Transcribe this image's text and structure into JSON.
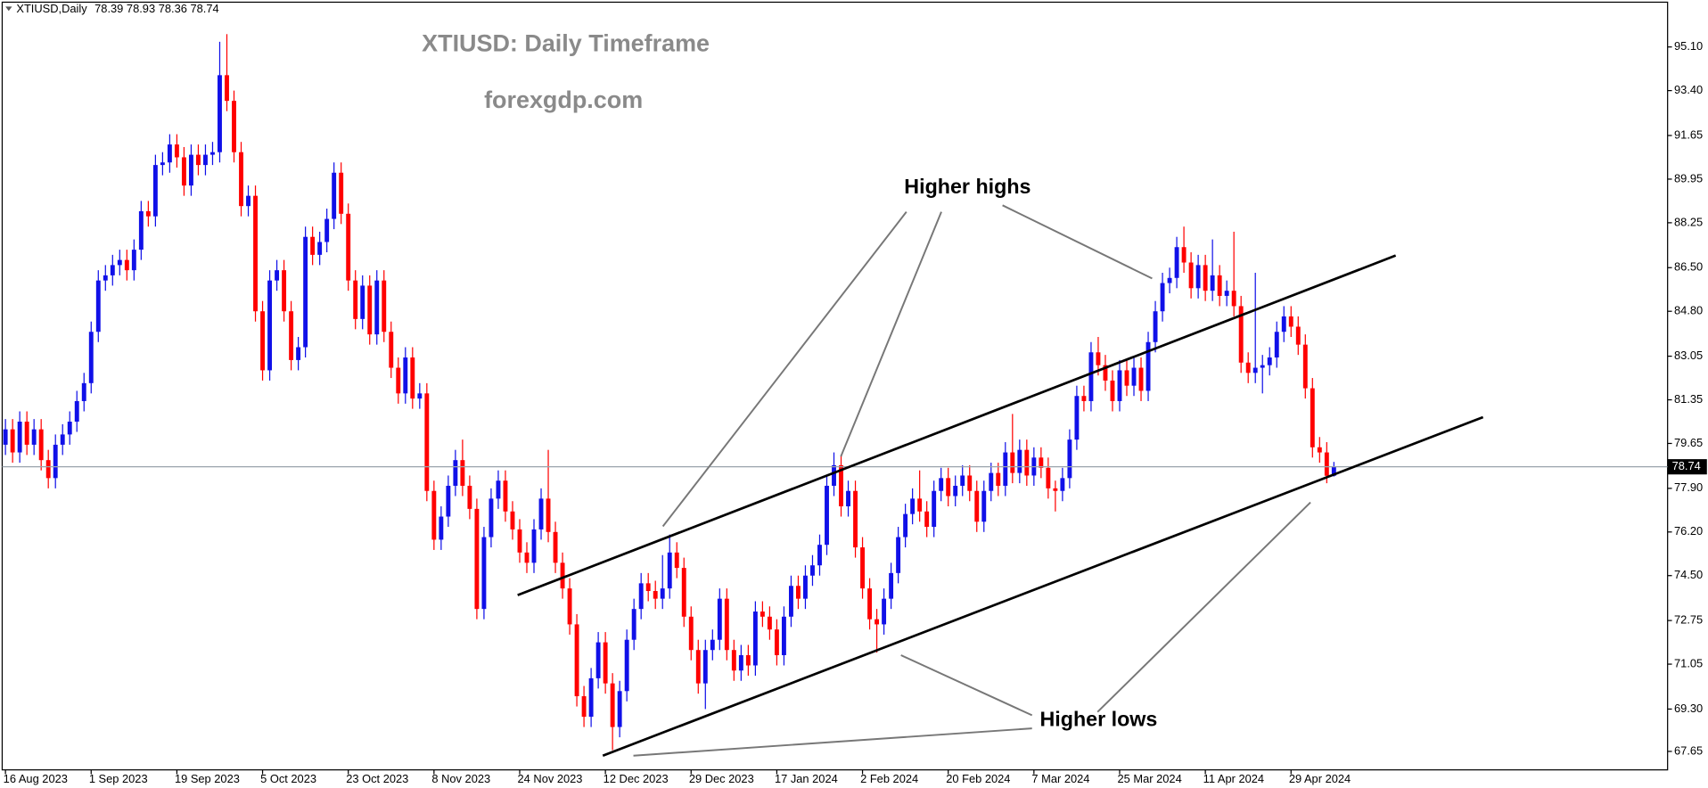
{
  "chart_data": {
    "type": "candlestick",
    "symbol": "XTIUSD,Daily",
    "title": "XTIUSD: Daily Timeframe",
    "subtitle": "forexgdp.com",
    "annotations": [
      "Higher highs",
      "Higher lows"
    ],
    "up_color": "#1010e8",
    "down_color": "#ff0000",
    "grid": false,
    "ylim": [
      66.93,
      96.93
    ],
    "yticks": [
      67.65,
      {
        "value": 69.3,
        "label": "69.30"
      },
      71.05,
      72.75,
      {
        "value": 74.5,
        "label": "74.50"
      },
      {
        "value": 76.2,
        "label": "76.20"
      },
      {
        "value": 77.9,
        "label": "77.90"
      },
      79.65,
      81.35,
      83.05,
      {
        "value": 84.8,
        "label": "84.80"
      },
      {
        "value": 86.5,
        "label": "86.50"
      },
      88.25,
      89.95,
      91.65,
      {
        "value": 93.4,
        "label": "93.40"
      },
      {
        "value": 95.1,
        "label": "95.10"
      }
    ],
    "categories": [
      "16 Aug 2023",
      null,
      null,
      null,
      null,
      null,
      null,
      null,
      null,
      null,
      null,
      null,
      "1 Sep 2023",
      null,
      null,
      null,
      null,
      null,
      null,
      null,
      null,
      null,
      null,
      null,
      "19 Sep 2023",
      null,
      null,
      null,
      null,
      null,
      null,
      null,
      null,
      null,
      null,
      null,
      "5 Oct 2023",
      null,
      null,
      null,
      null,
      null,
      null,
      null,
      null,
      null,
      null,
      null,
      "23 Oct 2023",
      null,
      null,
      null,
      null,
      null,
      null,
      null,
      null,
      null,
      null,
      null,
      "8 Nov 2023",
      null,
      null,
      null,
      null,
      null,
      null,
      null,
      null,
      null,
      null,
      null,
      "24 Nov 2023",
      null,
      null,
      null,
      null,
      null,
      null,
      null,
      null,
      null,
      null,
      null,
      "12 Dec 2023",
      null,
      null,
      null,
      null,
      null,
      null,
      null,
      null,
      null,
      null,
      null,
      "29 Dec 2023",
      null,
      null,
      null,
      null,
      null,
      null,
      null,
      null,
      null,
      null,
      null,
      "17 Jan 2024",
      null,
      null,
      null,
      null,
      null,
      null,
      null,
      null,
      null,
      null,
      null,
      "2 Feb 2024",
      null,
      null,
      null,
      null,
      null,
      null,
      null,
      null,
      null,
      null,
      null,
      "20 Feb 2024",
      null,
      null,
      null,
      null,
      null,
      null,
      null,
      null,
      null,
      null,
      null,
      "7 Mar 2024",
      null,
      null,
      null,
      null,
      null,
      null,
      null,
      null,
      null,
      null,
      null,
      "25 Mar 2024",
      null,
      null,
      null,
      null,
      null,
      null,
      null,
      null,
      null,
      null,
      null,
      "11 Apr 2024",
      null,
      null,
      null,
      null,
      null,
      null,
      null,
      null,
      null,
      null,
      null,
      "29 Apr 2024",
      null,
      null,
      null,
      null,
      null,
      null
    ],
    "candles": [
      [
        79.6,
        80.6,
        79.2,
        80.2
      ],
      [
        80.2,
        80.6,
        78.9,
        79.3
      ],
      [
        79.3,
        80.9,
        78.9,
        80.5
      ],
      [
        80.5,
        80.9,
        79.2,
        79.6
      ],
      [
        79.6,
        80.6,
        79.2,
        80.2
      ],
      [
        80.2,
        80.6,
        78.6,
        79.0
      ],
      [
        79.0,
        79.4,
        77.9,
        78.3
      ],
      [
        78.3,
        80.0,
        77.9,
        79.6
      ],
      [
        79.6,
        80.4,
        79.2,
        80.0
      ],
      [
        80.0,
        80.9,
        79.6,
        80.5
      ],
      [
        80.5,
        81.7,
        80.1,
        81.3
      ],
      [
        81.3,
        82.4,
        80.9,
        82.0
      ],
      [
        82.0,
        84.4,
        81.6,
        84.0
      ],
      [
        84.0,
        86.4,
        83.6,
        86.0
      ],
      [
        86.0,
        86.6,
        85.6,
        86.2
      ],
      [
        86.2,
        87.0,
        85.8,
        86.6
      ],
      [
        86.6,
        87.2,
        86.2,
        86.8
      ],
      [
        86.8,
        87.2,
        86.0,
        86.4
      ],
      [
        86.4,
        87.6,
        86.0,
        87.2
      ],
      [
        87.2,
        89.1,
        86.8,
        88.7
      ],
      [
        88.7,
        89.1,
        88.1,
        88.5
      ],
      [
        88.5,
        90.9,
        88.1,
        90.5
      ],
      [
        90.5,
        91.0,
        90.1,
        90.6
      ],
      [
        90.6,
        91.7,
        90.2,
        91.3
      ],
      [
        91.3,
        91.7,
        90.4,
        90.8
      ],
      [
        90.8,
        91.2,
        89.3,
        89.7
      ],
      [
        89.7,
        91.3,
        89.3,
        90.9
      ],
      [
        90.9,
        91.3,
        90.1,
        90.5
      ],
      [
        90.5,
        91.3,
        90.1,
        90.9
      ],
      [
        90.9,
        91.4,
        90.5,
        91.0
      ],
      [
        91.0,
        95.3,
        90.6,
        94.0
      ],
      [
        94.0,
        95.6,
        92.6,
        93.0
      ],
      [
        93.0,
        93.4,
        90.6,
        91.0
      ],
      [
        91.0,
        91.4,
        88.5,
        88.9
      ],
      [
        88.9,
        89.7,
        88.5,
        89.3
      ],
      [
        89.3,
        89.7,
        84.4,
        84.8
      ],
      [
        84.8,
        85.2,
        82.1,
        82.5
      ],
      [
        82.5,
        86.4,
        82.1,
        86.0
      ],
      [
        86.0,
        86.8,
        85.6,
        86.4
      ],
      [
        86.4,
        86.8,
        84.4,
        84.8
      ],
      [
        84.8,
        85.2,
        82.5,
        82.9
      ],
      [
        82.9,
        83.8,
        82.5,
        83.4
      ],
      [
        83.4,
        88.1,
        83.0,
        87.7
      ],
      [
        87.7,
        88.1,
        86.6,
        87.0
      ],
      [
        87.0,
        87.9,
        86.6,
        87.5
      ],
      [
        87.5,
        88.8,
        87.1,
        88.4
      ],
      [
        88.4,
        90.6,
        88.0,
        90.2
      ],
      [
        90.2,
        90.6,
        88.2,
        88.6
      ],
      [
        88.6,
        89.0,
        85.6,
        86.0
      ],
      [
        86.0,
        86.4,
        84.1,
        84.5
      ],
      [
        84.5,
        86.2,
        84.1,
        85.8
      ],
      [
        85.8,
        86.2,
        83.5,
        83.9
      ],
      [
        83.9,
        86.4,
        83.5,
        86.0
      ],
      [
        86.0,
        86.4,
        83.6,
        84.0
      ],
      [
        84.0,
        84.4,
        82.2,
        82.6
      ],
      [
        82.6,
        83.0,
        81.2,
        81.6
      ],
      [
        81.6,
        83.4,
        81.2,
        83.0
      ],
      [
        83.0,
        83.4,
        81.0,
        81.4
      ],
      [
        81.4,
        82.0,
        81.0,
        81.6
      ],
      [
        81.6,
        82.0,
        77.4,
        77.8
      ],
      [
        77.8,
        78.2,
        75.5,
        75.9
      ],
      [
        75.9,
        77.2,
        75.5,
        76.8
      ],
      [
        76.8,
        78.4,
        76.4,
        78.0
      ],
      [
        78.0,
        79.4,
        77.6,
        79.0
      ],
      [
        79.0,
        79.8,
        77.6,
        78.0
      ],
      [
        78.0,
        78.4,
        76.7,
        77.1
      ],
      [
        77.1,
        77.5,
        72.8,
        73.2
      ],
      [
        73.2,
        76.4,
        72.8,
        76.0
      ],
      [
        76.0,
        77.9,
        75.6,
        77.5
      ],
      [
        77.5,
        78.6,
        77.1,
        78.2
      ],
      [
        78.2,
        78.6,
        76.6,
        77.0
      ],
      [
        77.0,
        77.4,
        75.9,
        76.3
      ],
      [
        76.3,
        76.7,
        75.0,
        75.4
      ],
      [
        75.4,
        75.8,
        74.6,
        75.0
      ],
      [
        75.0,
        76.7,
        74.6,
        76.3
      ],
      [
        76.3,
        77.9,
        75.9,
        77.5
      ],
      [
        77.5,
        79.4,
        75.8,
        76.2
      ],
      [
        76.2,
        76.6,
        74.6,
        75.0
      ],
      [
        75.0,
        75.4,
        73.6,
        74.0
      ],
      [
        74.0,
        74.4,
        72.2,
        72.6
      ],
      [
        72.6,
        73.0,
        69.4,
        69.8
      ],
      [
        69.8,
        70.2,
        68.6,
        69.0
      ],
      [
        69.0,
        70.9,
        68.6,
        70.5
      ],
      [
        70.5,
        72.3,
        70.1,
        71.9
      ],
      [
        71.9,
        72.3,
        69.9,
        70.3
      ],
      [
        70.3,
        70.7,
        67.7,
        68.6
      ],
      [
        68.6,
        70.4,
        68.2,
        70.0
      ],
      [
        70.0,
        72.4,
        69.6,
        72.0
      ],
      [
        72.0,
        73.6,
        71.6,
        73.2
      ],
      [
        73.2,
        74.6,
        72.8,
        74.2
      ],
      [
        74.2,
        74.6,
        73.5,
        73.9
      ],
      [
        73.9,
        74.3,
        73.2,
        73.6
      ],
      [
        73.6,
        75.3,
        73.2,
        74.0
      ],
      [
        74.0,
        76.1,
        73.6,
        75.4
      ],
      [
        75.4,
        75.8,
        74.4,
        74.8
      ],
      [
        74.8,
        75.2,
        72.5,
        72.9
      ],
      [
        72.9,
        73.3,
        71.2,
        71.6
      ],
      [
        71.6,
        72.0,
        69.9,
        70.3
      ],
      [
        70.3,
        72.0,
        69.3,
        71.6
      ],
      [
        71.6,
        72.4,
        71.2,
        72.0
      ],
      [
        72.0,
        74.0,
        71.6,
        73.6
      ],
      [
        73.6,
        74.0,
        71.2,
        71.6
      ],
      [
        71.6,
        72.0,
        70.4,
        70.8
      ],
      [
        70.8,
        71.8,
        70.4,
        71.4
      ],
      [
        71.4,
        71.8,
        70.6,
        71.0
      ],
      [
        71.0,
        73.5,
        70.6,
        73.1
      ],
      [
        73.1,
        73.5,
        72.5,
        72.9
      ],
      [
        72.9,
        73.3,
        72.0,
        72.4
      ],
      [
        72.4,
        72.8,
        71.0,
        71.4
      ],
      [
        71.4,
        73.3,
        71.0,
        72.9
      ],
      [
        72.9,
        74.5,
        72.5,
        74.1
      ],
      [
        74.1,
        74.5,
        73.2,
        73.6
      ],
      [
        73.6,
        74.9,
        73.2,
        74.5
      ],
      [
        74.5,
        75.3,
        74.1,
        74.9
      ],
      [
        74.9,
        76.1,
        74.5,
        75.7
      ],
      [
        75.7,
        78.4,
        75.3,
        78.0
      ],
      [
        78.0,
        79.3,
        77.6,
        78.8
      ],
      [
        78.8,
        79.2,
        76.8,
        77.2
      ],
      [
        77.2,
        78.2,
        76.8,
        77.8
      ],
      [
        77.8,
        78.2,
        75.2,
        75.6
      ],
      [
        75.6,
        76.0,
        73.6,
        74.0
      ],
      [
        74.0,
        74.4,
        72.4,
        72.8
      ],
      [
        72.8,
        73.2,
        71.5,
        72.6
      ],
      [
        72.6,
        74.0,
        72.2,
        73.6
      ],
      [
        73.6,
        75.0,
        73.2,
        74.6
      ],
      [
        74.6,
        76.4,
        74.2,
        76.0
      ],
      [
        76.0,
        77.3,
        75.6,
        76.9
      ],
      [
        76.9,
        77.9,
        76.5,
        77.5
      ],
      [
        77.5,
        78.6,
        76.6,
        77.0
      ],
      [
        77.0,
        77.4,
        76.0,
        76.4
      ],
      [
        76.4,
        78.2,
        76.0,
        77.8
      ],
      [
        77.8,
        78.7,
        77.4,
        78.3
      ],
      [
        78.3,
        78.7,
        77.2,
        77.6
      ],
      [
        77.6,
        78.4,
        77.2,
        78.0
      ],
      [
        78.0,
        78.8,
        77.6,
        78.4
      ],
      [
        78.4,
        78.8,
        77.4,
        77.8
      ],
      [
        77.8,
        78.2,
        76.2,
        76.6
      ],
      [
        76.6,
        78.2,
        76.2,
        77.8
      ],
      [
        77.8,
        78.9,
        77.4,
        78.5
      ],
      [
        78.5,
        78.9,
        77.6,
        78.0
      ],
      [
        78.0,
        79.7,
        77.6,
        79.3
      ],
      [
        79.3,
        80.8,
        78.1,
        78.5
      ],
      [
        78.5,
        79.8,
        78.1,
        79.4
      ],
      [
        79.4,
        79.8,
        78.0,
        78.4
      ],
      [
        78.4,
        79.5,
        78.0,
        79.1
      ],
      [
        79.1,
        79.5,
        78.3,
        78.7
      ],
      [
        78.7,
        79.1,
        77.5,
        77.9
      ],
      [
        77.9,
        78.2,
        77.0,
        77.8
      ],
      [
        77.8,
        78.7,
        77.4,
        78.3
      ],
      [
        78.3,
        80.2,
        77.9,
        79.8
      ],
      [
        79.8,
        81.9,
        79.4,
        81.5
      ],
      [
        81.5,
        81.9,
        80.9,
        81.3
      ],
      [
        81.3,
        83.6,
        80.9,
        83.2
      ],
      [
        83.2,
        83.8,
        82.3,
        82.7
      ],
      [
        82.7,
        83.1,
        81.7,
        82.1
      ],
      [
        82.1,
        82.5,
        80.9,
        81.3
      ],
      [
        81.3,
        82.9,
        80.9,
        82.5
      ],
      [
        82.5,
        82.9,
        81.5,
        81.9
      ],
      [
        81.9,
        83.0,
        81.5,
        82.6
      ],
      [
        82.6,
        83.0,
        81.3,
        81.7
      ],
      [
        81.7,
        84.0,
        81.3,
        83.6
      ],
      [
        83.6,
        85.2,
        83.2,
        84.8
      ],
      [
        84.8,
        86.3,
        84.4,
        85.9
      ],
      [
        85.9,
        86.5,
        85.5,
        86.1
      ],
      [
        86.1,
        87.7,
        85.7,
        87.3
      ],
      [
        87.3,
        88.1,
        86.3,
        86.7
      ],
      [
        86.7,
        87.1,
        85.3,
        85.7
      ],
      [
        85.7,
        87.0,
        85.3,
        86.6
      ],
      [
        86.6,
        87.0,
        85.2,
        85.6
      ],
      [
        85.6,
        87.6,
        85.2,
        86.2
      ],
      [
        86.2,
        86.6,
        85.0,
        85.4
      ],
      [
        85.4,
        86.0,
        85.0,
        85.6
      ],
      [
        85.6,
        87.9,
        84.6,
        85.0
      ],
      [
        85.0,
        85.4,
        82.4,
        82.8
      ],
      [
        82.8,
        83.2,
        82.0,
        82.4
      ],
      [
        82.4,
        86.3,
        82.0,
        82.6
      ],
      [
        82.6,
        83.1,
        81.6,
        82.7
      ],
      [
        82.7,
        83.4,
        82.3,
        83.0
      ],
      [
        83.0,
        84.4,
        82.6,
        84.0
      ],
      [
        84.0,
        85.0,
        83.6,
        84.6
      ],
      [
        84.6,
        85.0,
        83.8,
        84.2
      ],
      [
        84.2,
        84.6,
        83.1,
        83.5
      ],
      [
        83.5,
        83.9,
        81.4,
        81.8
      ],
      [
        81.8,
        82.2,
        79.1,
        79.5
      ],
      [
        79.5,
        79.9,
        78.9,
        79.3
      ],
      [
        79.3,
        79.7,
        78.1,
        78.39
      ],
      [
        78.39,
        78.93,
        78.36,
        78.74
      ]
    ]
  }
}
